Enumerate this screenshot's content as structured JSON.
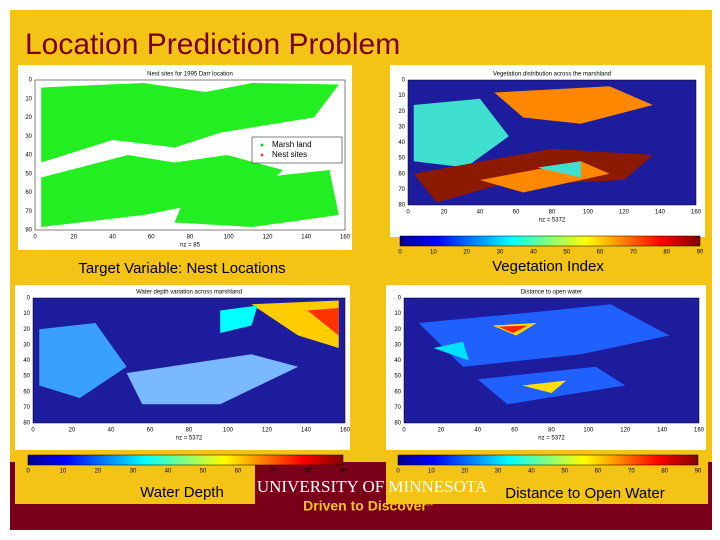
{
  "slide": {
    "title": "Location Prediction Problem",
    "panels": [
      {
        "caption": "Target Variable: Nest Locations",
        "plot_title": "Nest sites for 1995 Darr location",
        "x_label": "nz = 85",
        "xticks": [
          "0",
          "20",
          "40",
          "60",
          "80",
          "100",
          "120",
          "140",
          "160"
        ],
        "yticks": [
          "0",
          "10",
          "20",
          "30",
          "40",
          "50",
          "60",
          "70",
          "80"
        ],
        "legend": [
          "Marsh land",
          "Nest sites"
        ]
      },
      {
        "caption": "Vegetation Index",
        "plot_title": "Vegetation distribution across the marshland",
        "x_label": "nz = 5372",
        "xticks": [
          "0",
          "20",
          "40",
          "60",
          "80",
          "100",
          "120",
          "140",
          "160"
        ],
        "yticks": [
          "0",
          "10",
          "20",
          "30",
          "40",
          "50",
          "60",
          "70",
          "80"
        ],
        "colorbar_ticks": [
          "0",
          "10",
          "20",
          "30",
          "40",
          "50",
          "60",
          "70",
          "80",
          "90"
        ]
      },
      {
        "caption": "Water Depth",
        "plot_title": "Water depth variation across marshland",
        "x_label": "nz = 5372",
        "xticks": [
          "0",
          "20",
          "40",
          "60",
          "80",
          "100",
          "120",
          "140",
          "160"
        ],
        "yticks": [
          "0",
          "10",
          "20",
          "30",
          "40",
          "50",
          "60",
          "70",
          "80"
        ],
        "colorbar_ticks": [
          "0",
          "10",
          "20",
          "30",
          "40",
          "50",
          "60",
          "70",
          "80",
          "90"
        ]
      },
      {
        "caption": "Distance to Open Water",
        "plot_title": "Distance to open water",
        "x_label": "nz = 5372",
        "xticks": [
          "0",
          "20",
          "40",
          "60",
          "80",
          "100",
          "120",
          "140",
          "160"
        ],
        "yticks": [
          "0",
          "10",
          "20",
          "30",
          "40",
          "50",
          "60",
          "70",
          "80"
        ],
        "colorbar_ticks": [
          "0",
          "10",
          "20",
          "30",
          "40",
          "50",
          "60",
          "70",
          "80",
          "90"
        ]
      }
    ],
    "logo": {
      "name": "UNIVERSITY OF MINNESOTA",
      "tagline": "Driven to Discover",
      "mark": "SM"
    }
  }
}
